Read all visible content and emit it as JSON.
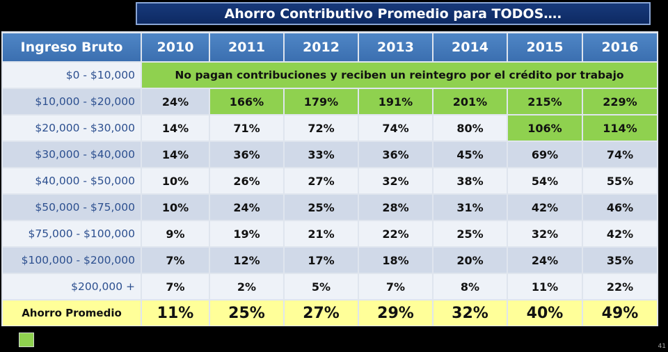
{
  "title": "Ahorro Contributivo Promedio para TODOS….",
  "chart_data": {
    "type": "table",
    "row_header_label": "Ingreso Bruto",
    "columns": [
      "2010",
      "2011",
      "2012",
      "2013",
      "2014",
      "2015",
      "2016"
    ],
    "merged_note": "No pagan contribuciones y reciben un reintegro por el crédito por trabajo",
    "rows": [
      {
        "label": "$0 - $10,000",
        "merged": true,
        "values": []
      },
      {
        "label": "$10,000 - $20,000",
        "values": [
          "24%",
          "166%",
          "179%",
          "191%",
          "201%",
          "215%",
          "229%"
        ],
        "highlight": [
          false,
          true,
          true,
          true,
          true,
          true,
          true
        ]
      },
      {
        "label": "$20,000 - $30,000",
        "values": [
          "14%",
          "71%",
          "72%",
          "74%",
          "80%",
          "106%",
          "114%"
        ],
        "highlight": [
          false,
          false,
          false,
          false,
          false,
          true,
          true
        ]
      },
      {
        "label": "$30,000 - $40,000",
        "values": [
          "14%",
          "36%",
          "33%",
          "36%",
          "45%",
          "69%",
          "74%"
        ]
      },
      {
        "label": "$40,000 - $50,000",
        "values": [
          "10%",
          "26%",
          "27%",
          "32%",
          "38%",
          "54%",
          "55%"
        ]
      },
      {
        "label": "$50,000 - $75,000",
        "values": [
          "10%",
          "24%",
          "25%",
          "28%",
          "31%",
          "42%",
          "46%"
        ]
      },
      {
        "label": "$75,000 - $100,000",
        "values": [
          "9%",
          "19%",
          "21%",
          "22%",
          "25%",
          "32%",
          "42%"
        ]
      },
      {
        "label": "$100,000 - $200,000",
        "values": [
          "7%",
          "12%",
          "17%",
          "18%",
          "20%",
          "24%",
          "35%"
        ]
      },
      {
        "label": "$200,000 +",
        "values": [
          "7%",
          "2%",
          "5%",
          "7%",
          "8%",
          "11%",
          "22%"
        ]
      }
    ],
    "summary": {
      "label": "Ahorro Promedio",
      "values": [
        "11%",
        "25%",
        "27%",
        "29%",
        "32%",
        "40%",
        "49%"
      ]
    }
  },
  "colors": {
    "header_blue": "#4a7fc0",
    "highlight_green": "#8fd14f",
    "summary_yellow": "#ffff99",
    "row_light": "#eef2f8",
    "row_dark": "#d0d9e8"
  },
  "page_number": "41"
}
